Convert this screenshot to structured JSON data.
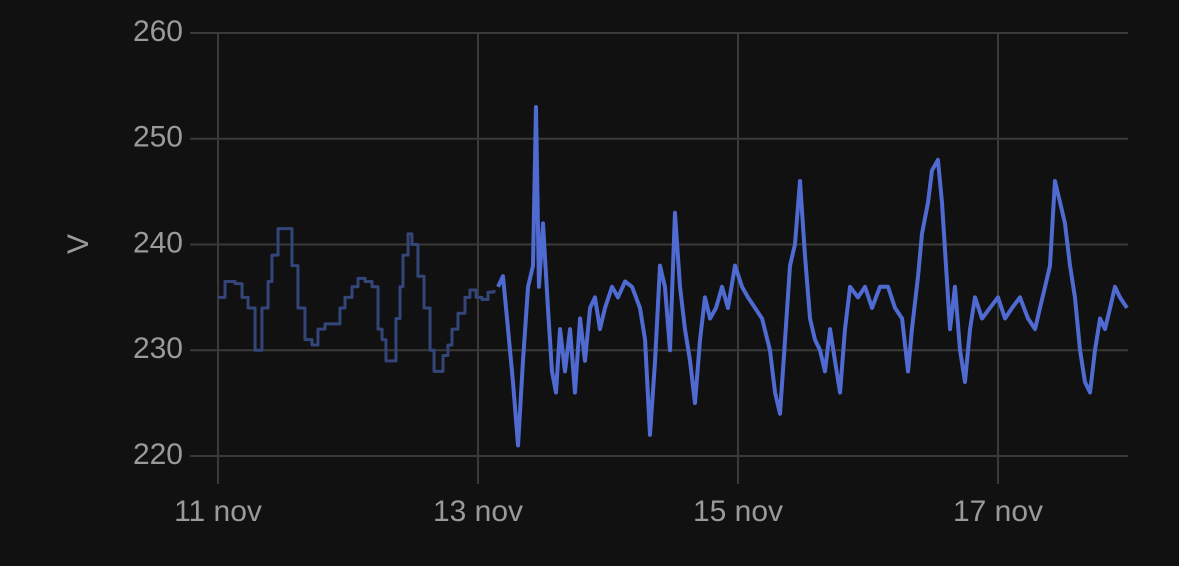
{
  "chart_data": {
    "type": "line",
    "y_label": "V",
    "xlim": [
      11,
      18
    ],
    "xticks": [
      {
        "value": 11,
        "label": "11 nov"
      },
      {
        "value": 13,
        "label": "13 nov"
      },
      {
        "value": 15,
        "label": "15 nov"
      },
      {
        "value": 17,
        "label": "17 nov"
      }
    ],
    "ylim": [
      220,
      260
    ],
    "yticks": [
      220,
      230,
      240,
      250,
      260
    ],
    "grid": true,
    "series": [
      {
        "color": "#34457a",
        "step": true,
        "x": [
          11,
          11.054,
          11.131,
          11.185,
          11.231,
          11.285,
          11.338,
          11.385,
          11.415,
          11.462,
          11.554,
          11.569,
          11.615,
          11.669,
          11.723,
          11.769,
          11.823,
          11.9,
          11.938,
          11.977,
          12.031,
          12.077,
          12.131,
          12.185,
          12.231,
          12.262,
          12.292,
          12.338,
          12.369,
          12.4,
          12.423,
          12.462,
          12.492,
          12.538,
          12.585,
          12.631,
          12.662,
          12.708,
          12.731,
          12.769,
          12.8,
          12.846,
          12.9,
          12.938,
          12.985,
          13.031,
          13.077,
          13.123
        ],
        "values": [
          235,
          236.5,
          236.3,
          235,
          234,
          230,
          234,
          236.5,
          239,
          241.5,
          241.5,
          238,
          234,
          231,
          230.5,
          232,
          232.5,
          232.5,
          234,
          235,
          236,
          236.8,
          236.5,
          236,
          232,
          231,
          229,
          229,
          233,
          236,
          239,
          241,
          240,
          237,
          234,
          230,
          228,
          228,
          229.5,
          230.5,
          232,
          233.5,
          235,
          235.7,
          235,
          234.8,
          235.5,
          235.7
        ]
      },
      {
        "color": "#4f6bd2",
        "step": false,
        "x": [
          13.154,
          13.192,
          13.231,
          13.269,
          13.308,
          13.346,
          13.385,
          13.423,
          13.446,
          13.469,
          13.5,
          13.538,
          13.569,
          13.6,
          13.631,
          13.669,
          13.708,
          13.746,
          13.785,
          13.823,
          13.862,
          13.9,
          13.938,
          13.977,
          14.031,
          14.077,
          14.131,
          14.185,
          14.246,
          14.285,
          14.323,
          14.362,
          14.4,
          14.438,
          14.477,
          14.515,
          14.554,
          14.592,
          14.631,
          14.669,
          14.708,
          14.746,
          14.785,
          14.831,
          14.877,
          14.923,
          14.977,
          15.031,
          15.077,
          15.131,
          15.185,
          15.246,
          15.285,
          15.323,
          15.362,
          15.4,
          15.438,
          15.477,
          15.515,
          15.554,
          15.592,
          15.631,
          15.669,
          15.708,
          15.746,
          15.785,
          15.823,
          15.862,
          15.923,
          15.977,
          16.031,
          16.092,
          16.154,
          16.208,
          16.262,
          16.308,
          16.338,
          16.385,
          16.415,
          16.462,
          16.492,
          16.538,
          16.569,
          16.6,
          16.631,
          16.669,
          16.708,
          16.746,
          16.785,
          16.823,
          16.877,
          16.938,
          17.0,
          17.054,
          17.108,
          17.169,
          17.231,
          17.285,
          17.323,
          17.362,
          17.4,
          17.438,
          17.477,
          17.515,
          17.554,
          17.592,
          17.631,
          17.669,
          17.708,
          17.746,
          17.785,
          17.823,
          17.862,
          17.9,
          17.938,
          17.992
        ],
        "values": [
          236,
          237,
          232,
          227,
          221,
          229,
          236,
          238,
          253,
          236,
          242,
          234,
          228,
          226,
          232,
          228,
          232,
          226,
          233,
          229,
          234,
          235,
          232,
          234,
          236,
          235,
          236.5,
          236,
          234,
          231,
          222,
          229,
          238,
          236,
          230,
          243,
          236,
          232,
          229,
          225,
          231,
          235,
          233,
          234,
          236,
          234,
          238,
          236,
          235,
          234,
          233,
          230,
          226,
          224,
          231,
          238,
          240,
          246,
          239,
          233,
          231,
          230,
          228,
          232,
          229,
          226,
          232,
          236,
          235,
          236,
          234,
          236,
          236,
          234,
          233,
          228,
          232,
          237,
          241,
          244,
          247,
          248,
          244,
          238,
          232,
          236,
          230,
          227,
          232,
          235,
          233,
          234,
          235,
          233,
          234,
          235,
          233,
          232,
          234,
          236,
          238,
          246,
          244,
          242,
          238,
          235,
          230,
          227,
          226,
          230,
          233,
          232,
          234,
          236,
          235,
          234
        ]
      }
    ]
  }
}
